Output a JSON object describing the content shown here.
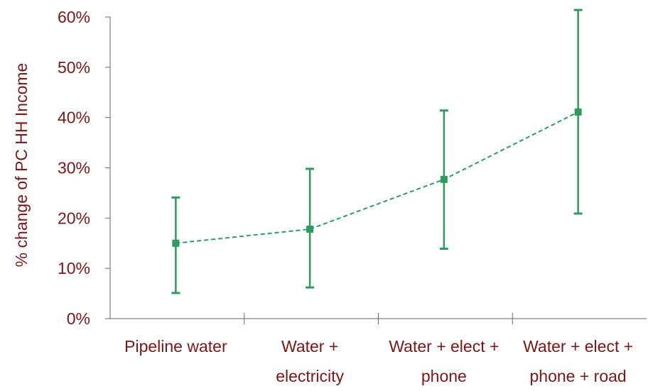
{
  "chart_data": {
    "type": "line",
    "title": "",
    "xlabel": "",
    "ylabel": "% change of PC HH Income",
    "categories": [
      [
        "Pipeline water"
      ],
      [
        "Water +",
        "electricity"
      ],
      [
        "Water + elect +",
        "phone"
      ],
      [
        "Water + elect +",
        "phone + road"
      ]
    ],
    "series": [
      {
        "values": [
          15.0,
          17.8,
          27.7,
          41.1
        ],
        "error_low": [
          5.1,
          6.2,
          13.9,
          20.9
        ],
        "error_high": [
          24.1,
          29.8,
          41.4,
          61.4
        ],
        "line_style": "dashed"
      }
    ],
    "y_ticks": [
      0,
      10,
      20,
      30,
      40,
      50,
      60
    ],
    "y_tick_labels": [
      "0%",
      "10%",
      "20%",
      "30%",
      "40%",
      "50%",
      "60%"
    ],
    "ylim": [
      0,
      60
    ],
    "grid": false,
    "colors": {
      "series": "#2e9a5e",
      "text": "#7b1616",
      "axis": "#666666"
    }
  }
}
